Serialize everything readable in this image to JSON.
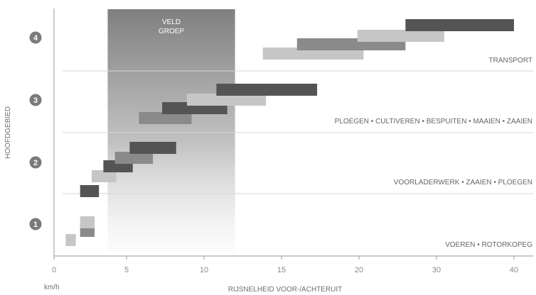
{
  "chart_data": {
    "type": "bar",
    "ylabel": "HOOFDGEBIED",
    "xlabel": "RIJSNELHEID VOOR-/ACHTERUIT",
    "xunit": "km/h",
    "xlim": [
      0,
      41
    ],
    "xticks": [
      0,
      5,
      10,
      15,
      20,
      30,
      40
    ],
    "yticks": [
      "1",
      "2",
      "3",
      "4"
    ],
    "zone": {
      "label_line1": "VELD",
      "label_line2": "GROEP",
      "x": [
        3.7,
        12.0
      ]
    },
    "categories": [
      {
        "id": "1",
        "label": "VOEREN • ROTORKOPEG",
        "bars": [
          {
            "x0": 0.8,
            "x1": 1.5,
            "shade": "light"
          },
          {
            "x0": 1.8,
            "x1": 2.8,
            "shade": "mid"
          },
          {
            "x0": 1.8,
            "x1": 2.8,
            "shade": "light"
          },
          {
            "x0": 1.8,
            "x1": 3.1,
            "shade": "dark"
          }
        ]
      },
      {
        "id": "2",
        "label": "VOORLADERWERK • ZAAIEN • PLOEGEN",
        "bars": [
          {
            "x0": 2.6,
            "x1": 4.3,
            "shade": "light"
          },
          {
            "x0": 3.4,
            "x1": 5.4,
            "shade": "dark"
          },
          {
            "x0": 4.2,
            "x1": 6.7,
            "shade": "mid"
          },
          {
            "x0": 5.2,
            "x1": 8.2,
            "shade": "dark"
          }
        ]
      },
      {
        "id": "3",
        "label": "PLOEGEN • CULTIVEREN • BESPUITEN • MAAIEN • ZAAIEN",
        "bars": [
          {
            "x0": 5.8,
            "x1": 9.2,
            "shade": "mid"
          },
          {
            "x0": 7.3,
            "x1": 11.5,
            "shade": "dark"
          },
          {
            "x0": 8.9,
            "x1": 14.0,
            "shade": "light"
          },
          {
            "x0": 10.8,
            "x1": 17.3,
            "shade": "dark"
          }
        ]
      },
      {
        "id": "4",
        "label": "TRANSPORT",
        "bars": [
          {
            "x0": 13.8,
            "x1": 20.6,
            "shade": "light"
          },
          {
            "x0": 16.0,
            "x1": 26.0,
            "shade": "mid"
          },
          {
            "x0": 19.9,
            "x1": 31.0,
            "shade": "light"
          },
          {
            "x0": 26.0,
            "x1": 40.0,
            "shade": "dark"
          }
        ]
      }
    ],
    "colors": {
      "light": "#c6c6c6",
      "mid": "#8a8a8a",
      "dark": "#545454",
      "zone": "#7f7f7f"
    },
    "grid": false
  }
}
